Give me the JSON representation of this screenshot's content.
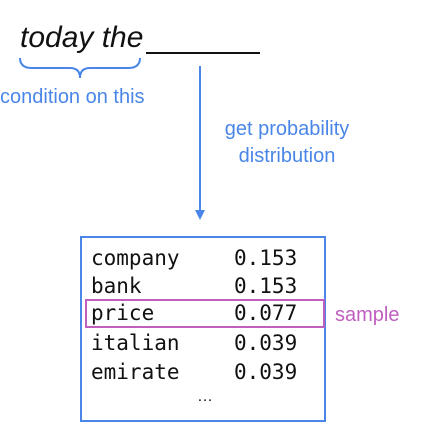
{
  "colors": {
    "text": "#111111",
    "accent_blue": "#4a86e8",
    "highlight_magenta": "#c05fc0"
  },
  "prompt": {
    "text": "today the"
  },
  "annotations": {
    "condition": "condition on this",
    "probability": "get probability distribution",
    "sample": "sample"
  },
  "distribution": {
    "rows": [
      {
        "word": "company",
        "prob": "0.153"
      },
      {
        "word": "bank",
        "prob": "0.153"
      },
      {
        "word": "price",
        "prob": "0.077"
      },
      {
        "word": "italian",
        "prob": "0.039"
      },
      {
        "word": "emirate",
        "prob": "0.039"
      }
    ],
    "more": "…"
  }
}
